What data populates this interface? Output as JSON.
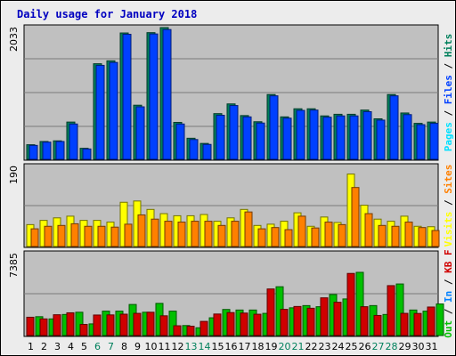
{
  "chart_data": [
    {
      "type": "bar",
      "title": "Daily usage for January 2018",
      "ylabel_parts": [
        "Pages",
        "Files",
        "Hits"
      ],
      "max_label": "2033",
      "ylim": [
        0,
        2033
      ],
      "categories": [
        "1",
        "2",
        "3",
        "4",
        "5",
        "6",
        "7",
        "8",
        "9",
        "10",
        "11",
        "12",
        "13",
        "14",
        "15",
        "16",
        "17",
        "18",
        "19",
        "20",
        "21",
        "22",
        "23",
        "24",
        "25",
        "26",
        "27",
        "28",
        "29",
        "30",
        "31"
      ],
      "weekend_days": [
        "6",
        "7",
        "13",
        "14",
        "20",
        "21",
        "27",
        "28"
      ],
      "series": [
        {
          "name": "Hits",
          "values": [
            225,
            275,
            285,
            575,
            170,
            1475,
            1520,
            1950,
            835,
            1955,
            2033,
            570,
            325,
            245,
            705,
            855,
            675,
            580,
            1000,
            655,
            780,
            780,
            670,
            695,
            695,
            760,
            625,
            1000,
            715,
            555,
            575
          ]
        },
        {
          "name": "Files",
          "values": [
            215,
            265,
            275,
            545,
            160,
            1450,
            1495,
            1930,
            810,
            1935,
            2003,
            545,
            305,
            230,
            680,
            830,
            655,
            560,
            980,
            635,
            755,
            760,
            650,
            670,
            670,
            735,
            605,
            980,
            690,
            535,
            555
          ]
        },
        {
          "name": "Pages",
          "values": [
            0,
            0,
            0,
            0,
            0,
            0,
            0,
            0,
            0,
            0,
            0,
            0,
            0,
            0,
            0,
            0,
            0,
            0,
            0,
            0,
            0,
            0,
            0,
            0,
            0,
            0,
            0,
            0,
            0,
            0,
            0
          ]
        }
      ]
    },
    {
      "type": "bar",
      "ylabel_parts": [
        "Visits",
        "Sites"
      ],
      "max_label": "190",
      "ylim": [
        0,
        190
      ],
      "categories": [
        "1",
        "2",
        "3",
        "4",
        "5",
        "6",
        "7",
        "8",
        "9",
        "10",
        "11",
        "12",
        "13",
        "14",
        "15",
        "16",
        "17",
        "18",
        "19",
        "20",
        "21",
        "22",
        "23",
        "24",
        "25",
        "26",
        "27",
        "28",
        "29",
        "30",
        "31"
      ],
      "series": [
        {
          "name": "Visits",
          "values": [
            52,
            62,
            68,
            72,
            62,
            62,
            58,
            105,
            108,
            88,
            78,
            73,
            73,
            76,
            60,
            68,
            88,
            50,
            53,
            60,
            80,
            48,
            70,
            57,
            172,
            98,
            65,
            60,
            72,
            48,
            47
          ]
        },
        {
          "name": "Sites",
          "values": [
            42,
            48,
            50,
            54,
            48,
            48,
            46,
            53,
            75,
            65,
            60,
            58,
            60,
            60,
            50,
            60,
            82,
            42,
            45,
            40,
            72,
            44,
            58,
            52,
            140,
            78,
            50,
            48,
            58,
            45,
            38
          ]
        }
      ]
    },
    {
      "type": "bar",
      "ylabel_parts": [
        "Out",
        "In",
        "KB F"
      ],
      "max_label": "7385",
      "ylim": [
        0,
        7385
      ],
      "categories": [
        "1",
        "2",
        "3",
        "4",
        "5",
        "6",
        "7",
        "8",
        "9",
        "10",
        "11",
        "12",
        "13",
        "14",
        "15",
        "16",
        "17",
        "18",
        "19",
        "20",
        "21",
        "22",
        "23",
        "24",
        "25",
        "26",
        "27",
        "28",
        "29",
        "30",
        "31"
      ],
      "series": [
        {
          "name": "KB F",
          "values": [
            1650,
            1500,
            1875,
            2050,
            1000,
            1850,
            1860,
            1925,
            2000,
            2100,
            1780,
            880,
            840,
            1275,
            1940,
            2070,
            2025,
            1920,
            4200,
            2360,
            2620,
            2460,
            3400,
            3000,
            5600,
            2600,
            1810,
            4500,
            2000,
            1990,
            2570
          ]
        },
        {
          "name": "In",
          "values": [
            0,
            0,
            0,
            0,
            0,
            0,
            0,
            0,
            0,
            0,
            0,
            0,
            0,
            0,
            0,
            0,
            0,
            0,
            0,
            0,
            0,
            0,
            0,
            0,
            0,
            0,
            0,
            0,
            0,
            0,
            0
          ]
        },
        {
          "name": "Out",
          "values": [
            1700,
            1500,
            1900,
            2100,
            1050,
            2200,
            2200,
            2800,
            2100,
            2900,
            2200,
            900,
            700,
            1600,
            2350,
            2300,
            2300,
            2000,
            4400,
            2500,
            2700,
            2600,
            3700,
            3300,
            5700,
            2700,
            1900,
            4650,
            2300,
            2200,
            2850
          ]
        }
      ]
    }
  ],
  "colors": {
    "hits": "#00805c",
    "files": "#0040ff",
    "pages": "#00e0ff",
    "visits": "#ffff00",
    "sites": "#ff8000",
    "kbf": "#d00000",
    "kbin": "#0080ff",
    "kbout": "#00c000",
    "panel": "#c0c0c0",
    "title": "#0000c0",
    "weekend": "#00805c"
  }
}
